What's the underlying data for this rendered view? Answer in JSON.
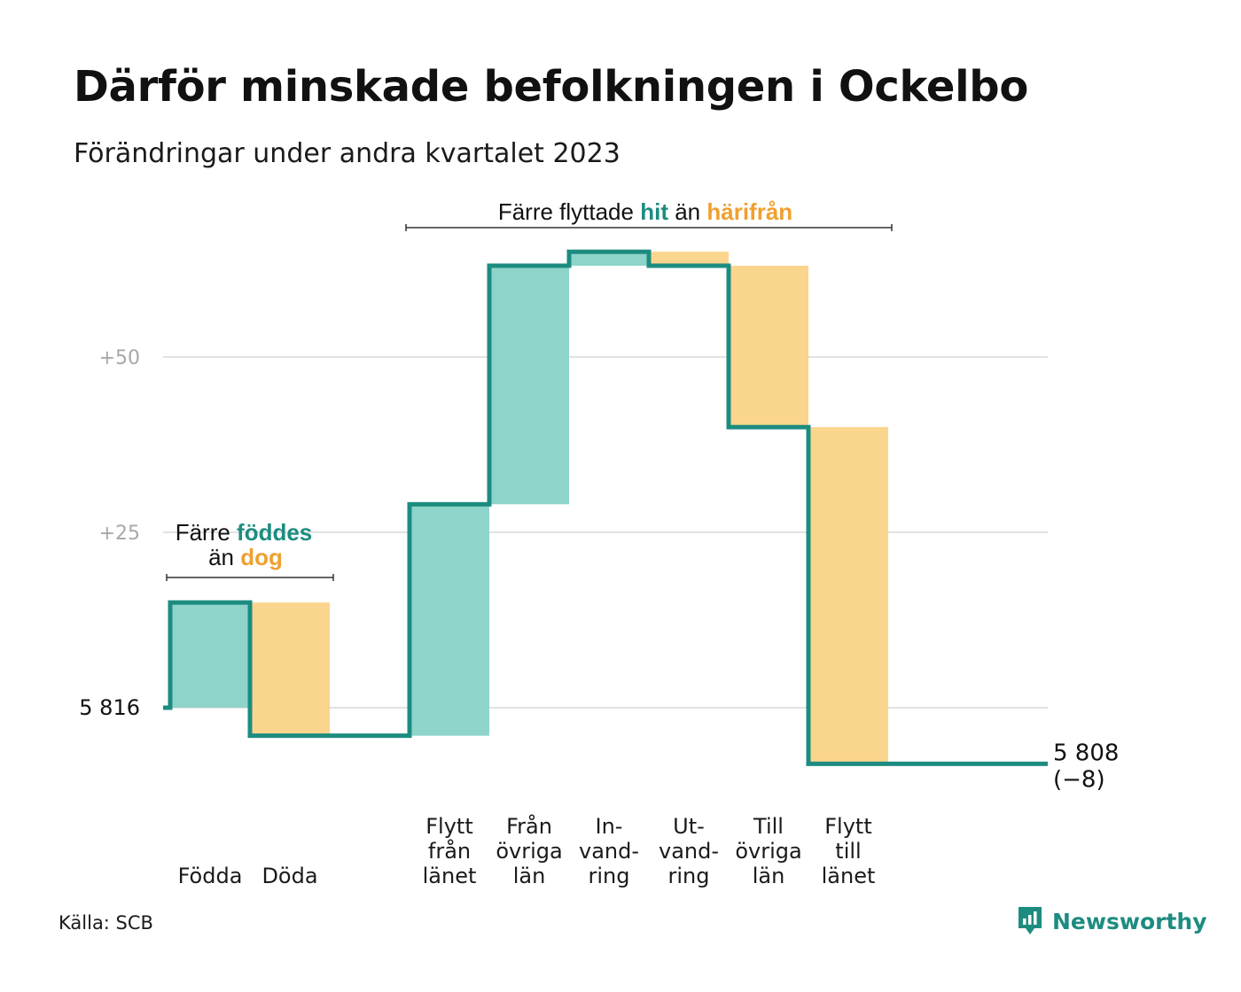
{
  "title": "Därför minskade befolkningen i Ockelbo",
  "subtitle": "Förändringar under andra kvartalet 2023",
  "source": "Källa: SCB",
  "brand": {
    "name": "Newsworthy",
    "icon": "newsworthy-logo-icon",
    "color": "#1d8c80"
  },
  "colors": {
    "increase": "#8ed4cb",
    "decrease": "#fad58d",
    "line": "#1d8c80",
    "grid": "#e2e2e2",
    "hit": "#1d8c80",
    "away": "#f0a030",
    "axis_label": "#a8a8a8"
  },
  "annotations": {
    "births_deaths": {
      "pre": "Färre",
      "hit": "föddes",
      "mid": "än",
      "away": "dog"
    },
    "migration": {
      "pre": "Färre flyttade",
      "hit": "hit",
      "mid": "än",
      "away": "härifrån"
    }
  },
  "chart_data": {
    "type": "waterfall",
    "start": {
      "label": "5  816",
      "value": 5816
    },
    "end": {
      "label": "5 808",
      "change_label": "(−8)",
      "value": 5808
    },
    "y_axis": {
      "ticks": [
        {
          "value": 25,
          "label": "+25"
        },
        {
          "value": 50,
          "label": "+50"
        }
      ],
      "range": [
        -10,
        65
      ]
    },
    "steps": [
      {
        "label": [
          "Födda"
        ],
        "change": 15
      },
      {
        "label": [
          "Döda"
        ],
        "change": -19
      },
      {
        "label": [
          "Flytt",
          "från",
          "länet"
        ],
        "change": 33
      },
      {
        "label": [
          "Från",
          "övriga",
          "län"
        ],
        "change": 34
      },
      {
        "label": [
          "In-",
          "vand-",
          "ring"
        ],
        "change": 2
      },
      {
        "label": [
          "Ut-",
          "vand-",
          "ring"
        ],
        "change": -2
      },
      {
        "label": [
          "Till",
          "övriga",
          "län"
        ],
        "change": -23
      },
      {
        "label": [
          "Flytt",
          "till",
          "länet"
        ],
        "change": -48
      }
    ],
    "grid": true
  }
}
